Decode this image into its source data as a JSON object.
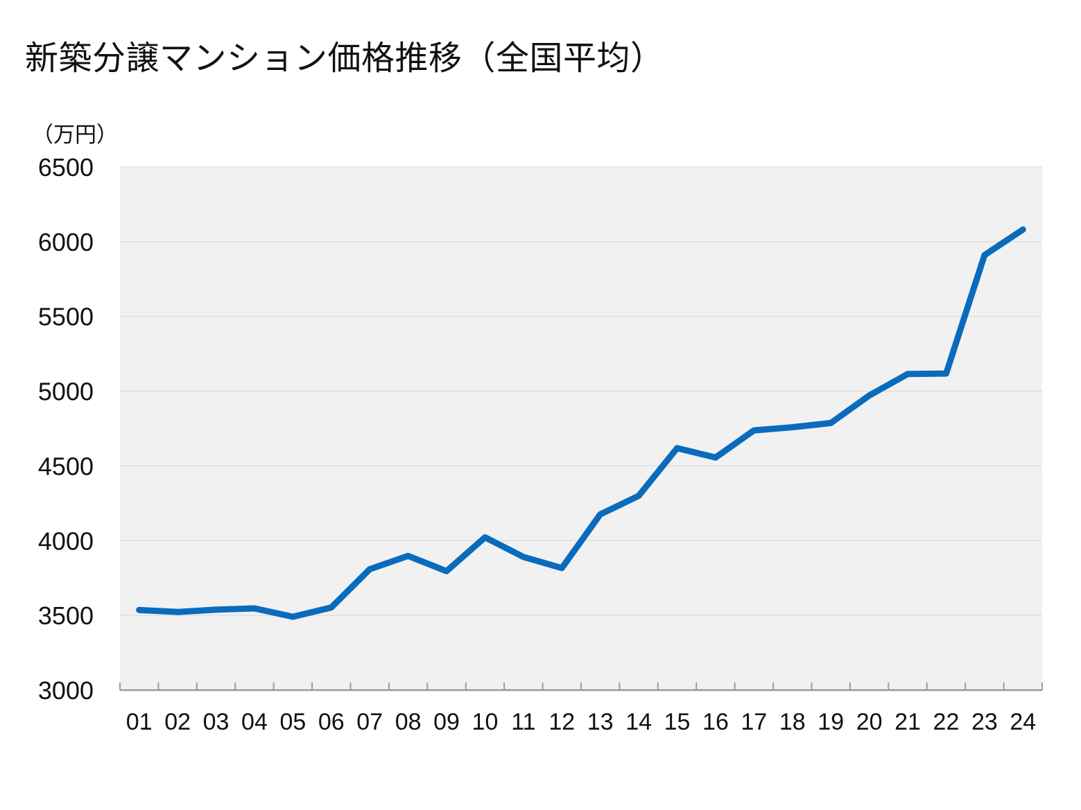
{
  "chart_data": {
    "type": "line",
    "title": "新築分譲マンション価格推移（全国平均）",
    "ylabel": "（万円）",
    "xlabel": "",
    "categories": [
      "01",
      "02",
      "03",
      "04",
      "05",
      "06",
      "07",
      "08",
      "09",
      "10",
      "11",
      "12",
      "13",
      "14",
      "15",
      "16",
      "17",
      "18",
      "19",
      "20",
      "21",
      "22",
      "23",
      "24"
    ],
    "series": [
      {
        "values": [
          3536,
          3523,
          3538,
          3547,
          3491,
          3553,
          3809,
          3898,
          3796,
          4022,
          3891,
          3817,
          4176,
          4300,
          4619,
          4556,
          4738,
          4759,
          4787,
          4971,
          5115,
          5118,
          5911,
          6082
        ]
      }
    ],
    "ylim": [
      3000,
      6500
    ],
    "yticks": [
      3000,
      3500,
      4000,
      4500,
      5000,
      5500,
      6000,
      6500
    ],
    "grid": true,
    "legend": "none",
    "colors": {
      "line": "#0a6bbd",
      "plot_background": "#f1f1f1",
      "gridline": "#dcdcdc",
      "axis": "#9a9a9a"
    }
  }
}
